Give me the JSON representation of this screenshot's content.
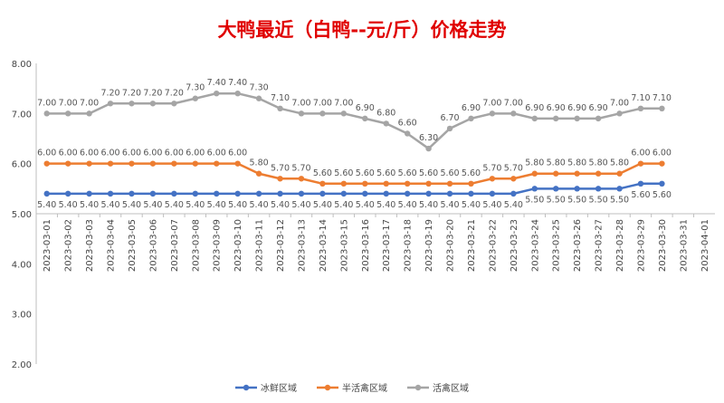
{
  "chart_data": {
    "type": "line",
    "title": "大鸭最近（白鸭--元/斤）价格走势",
    "ylim": [
      2.0,
      8.0
    ],
    "yticks": [
      "2.00",
      "3.00",
      "4.00",
      "5.00",
      "6.00",
      "7.00",
      "8.00"
    ],
    "grid": false,
    "legend": "bottom",
    "categories": [
      "2023-03-01",
      "2023-03-02",
      "2023-03-03",
      "2023-03-04",
      "2023-03-05",
      "2023-03-06",
      "2023-03-07",
      "2023-03-08",
      "2023-03-09",
      "2023-03-10",
      "2023-03-11",
      "2023-03-12",
      "2023-03-13",
      "2023-03-14",
      "2023-03-15",
      "2023-03-16",
      "2023-03-17",
      "2023-03-18",
      "2023-03-19",
      "2023-03-20",
      "2023-03-21",
      "2023-03-22",
      "2023-03-23",
      "2023-03-24",
      "2023-03-25",
      "2023-03-26",
      "2023-03-27",
      "2023-03-28",
      "2023-03-29",
      "2023-03-30",
      "2023-03-31",
      "2023-04-01"
    ],
    "series": [
      {
        "name": "冰鲜区域",
        "color": "#4472C4",
        "labels": "below",
        "values": [
          5.4,
          5.4,
          5.4,
          5.4,
          5.4,
          5.4,
          5.4,
          5.4,
          5.4,
          5.4,
          5.4,
          5.4,
          5.4,
          5.4,
          5.4,
          5.4,
          5.4,
          5.4,
          5.4,
          5.4,
          5.4,
          5.4,
          5.4,
          5.5,
          5.5,
          5.5,
          5.5,
          5.5,
          5.6,
          5.6,
          null,
          null
        ]
      },
      {
        "name": "半活禽区域",
        "color": "#ED7D31",
        "labels": "above",
        "values": [
          6.0,
          6.0,
          6.0,
          6.0,
          6.0,
          6.0,
          6.0,
          6.0,
          6.0,
          6.0,
          5.8,
          5.7,
          5.7,
          5.6,
          5.6,
          5.6,
          5.6,
          5.6,
          5.6,
          5.6,
          5.6,
          5.7,
          5.7,
          5.8,
          5.8,
          5.8,
          5.8,
          5.8,
          6.0,
          6.0,
          null,
          null
        ]
      },
      {
        "name": "活禽区域",
        "color": "#A5A5A5",
        "labels": "above",
        "values": [
          7.0,
          7.0,
          7.0,
          7.2,
          7.2,
          7.2,
          7.2,
          7.3,
          7.4,
          7.4,
          7.3,
          7.1,
          7.0,
          7.0,
          7.0,
          6.9,
          6.8,
          6.6,
          6.3,
          6.7,
          6.9,
          7.0,
          7.0,
          6.9,
          6.9,
          6.9,
          6.9,
          7.0,
          7.1,
          7.1,
          null,
          null
        ]
      }
    ]
  }
}
